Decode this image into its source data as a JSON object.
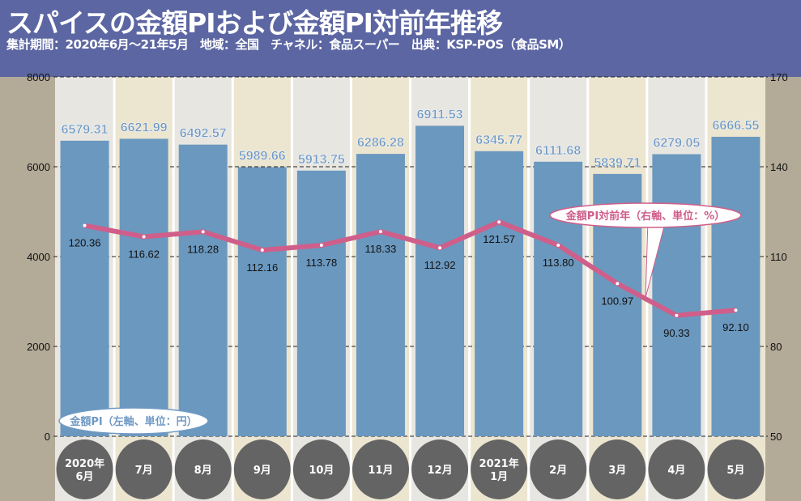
{
  "header": {
    "title": "スパイスの金額PIおよび金額PI対前年推移",
    "subtitle": "集計期間：2020年6月～21年5月　地域：全国　チャネル：食品スーパー　出典：KSP-POS（食品SM）"
  },
  "chart_data": {
    "type": "bar+line",
    "categories": [
      "2020年\n6月",
      "7月",
      "8月",
      "9月",
      "10月",
      "11月",
      "12月",
      "2021年\n1月",
      "2月",
      "3月",
      "4月",
      "5月"
    ],
    "series": [
      {
        "name": "金額PI（左軸、単位：円）",
        "type": "bar",
        "axis": "left",
        "values": [
          6579.31,
          6621.99,
          6492.57,
          5989.66,
          5913.75,
          6286.28,
          6911.53,
          6345.77,
          6111.68,
          5839.71,
          6279.05,
          6666.55
        ]
      },
      {
        "name": "金額PI対前年（右軸、単位：%）",
        "type": "line",
        "axis": "right",
        "values": [
          120.36,
          116.62,
          118.28,
          112.16,
          113.78,
          118.33,
          112.92,
          121.57,
          113.8,
          100.97,
          90.33,
          92.1
        ]
      }
    ],
    "value_labels_bar": [
      "6579.31",
      "6621.99",
      "6492.57",
      "5989.66",
      "5913.75",
      "6286.28",
      "6911.53",
      "6345.77",
      "6111.68",
      "5839.71",
      "6279.05",
      "6666.55"
    ],
    "value_labels_line": [
      "120.36",
      "116.62",
      "118.28",
      "112.16",
      "113.78",
      "118.33",
      "112.92",
      "121.57",
      "113.80",
      "100.97",
      "90.33",
      "92.10"
    ],
    "ylim_left": [
      0,
      8000
    ],
    "yticks_left": [
      "0",
      "2000",
      "4000",
      "6000",
      "8000"
    ],
    "ylim_right": [
      50,
      170
    ],
    "yticks_right": [
      "50",
      "80",
      "110",
      "140",
      "170"
    ],
    "grid": "dashed horizontal",
    "colors": {
      "bar": "#6b98bf",
      "line": "#cf5f8a",
      "category_circle": "#646464",
      "header": "#5c66a2",
      "stripe_a": "#e8e6e1",
      "stripe_b": "#ece5d0"
    }
  }
}
